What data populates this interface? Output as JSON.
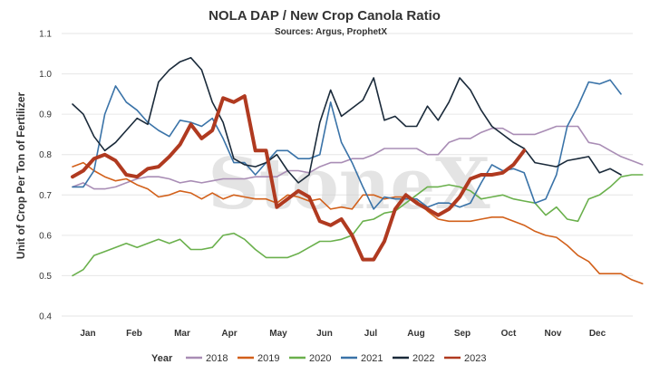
{
  "chart_data": {
    "type": "line",
    "title": "NOLA DAP / New Crop Canola Ratio",
    "subtitle": "Sources: Argus, ProphetX",
    "ylabel": "Unit of Crop Per Ton of Fertilizer",
    "xlabel": "",
    "ylim": [
      0.4,
      1.1
    ],
    "yticks": [
      0.4,
      0.5,
      0.6,
      0.7,
      0.8,
      0.9,
      1.0,
      1.1
    ],
    "ytick_labels": [
      "0.4",
      "0.5",
      "0.6",
      "0.7",
      "0.8",
      "0.9",
      "1.0",
      "1.1"
    ],
    "months": [
      "Jan",
      "Feb",
      "Mar",
      "Apr",
      "May",
      "Jun",
      "Jul",
      "Aug",
      "Sep",
      "Oct",
      "Nov",
      "Dec"
    ],
    "xlim_weeks": [
      0,
      51
    ],
    "grid": "horizontal",
    "legend": {
      "title": "Year",
      "placement": "bottom"
    },
    "watermark": "StoneX",
    "series": [
      {
        "name": "2018",
        "color": "#a98db5",
        "width": 1.6,
        "values": [
          0.72,
          0.73,
          0.715,
          0.715,
          0.72,
          0.73,
          0.74,
          0.745,
          0.745,
          0.74,
          0.73,
          0.735,
          0.73,
          0.735,
          0.74,
          0.74,
          0.74,
          0.745,
          0.745,
          0.745,
          0.76,
          0.76,
          0.755,
          0.77,
          0.78,
          0.78,
          0.79,
          0.79,
          0.8,
          0.815,
          0.815,
          0.815,
          0.815,
          0.8,
          0.8,
          0.83,
          0.84,
          0.84,
          0.855,
          0.865,
          0.865,
          0.85,
          0.85,
          0.85,
          0.86,
          0.87,
          0.87,
          0.87,
          0.83,
          0.825,
          0.81,
          0.795,
          0.785,
          0.775
        ]
      },
      {
        "name": "2019",
        "color": "#d2601a",
        "width": 1.6,
        "values": [
          0.77,
          0.78,
          0.76,
          0.745,
          0.735,
          0.74,
          0.725,
          0.715,
          0.695,
          0.7,
          0.71,
          0.705,
          0.69,
          0.705,
          0.69,
          0.7,
          0.695,
          0.69,
          0.69,
          0.68,
          0.7,
          0.695,
          0.685,
          0.69,
          0.665,
          0.67,
          0.665,
          0.7,
          0.7,
          0.69,
          0.695,
          0.695,
          0.685,
          0.66,
          0.64,
          0.635,
          0.635,
          0.635,
          0.64,
          0.645,
          0.645,
          0.635,
          0.625,
          0.61,
          0.6,
          0.595,
          0.575,
          0.55,
          0.535,
          0.505,
          0.505,
          0.505,
          0.49,
          0.48
        ]
      },
      {
        "name": "2020",
        "color": "#6ab04c",
        "width": 1.6,
        "values": [
          0.5,
          0.515,
          0.55,
          0.56,
          0.57,
          0.58,
          0.57,
          0.58,
          0.59,
          0.58,
          0.59,
          0.565,
          0.565,
          0.57,
          0.6,
          0.605,
          0.59,
          0.565,
          0.545,
          0.545,
          0.545,
          0.555,
          0.57,
          0.585,
          0.585,
          0.59,
          0.6,
          0.635,
          0.64,
          0.655,
          0.66,
          0.68,
          0.7,
          0.72,
          0.72,
          0.725,
          0.72,
          0.71,
          0.69,
          0.695,
          0.7,
          0.69,
          0.685,
          0.68,
          0.65,
          0.67,
          0.64,
          0.635,
          0.69,
          0.7,
          0.72,
          0.745,
          0.75,
          0.75
        ]
      },
      {
        "name": "2021",
        "color": "#3a73a8",
        "width": 1.6,
        "values": [
          0.72,
          0.72,
          0.76,
          0.9,
          0.97,
          0.93,
          0.91,
          0.88,
          0.86,
          0.845,
          0.885,
          0.88,
          0.87,
          0.89,
          0.84,
          0.78,
          0.78,
          0.75,
          0.78,
          0.81,
          0.81,
          0.79,
          0.79,
          0.8,
          0.93,
          0.83,
          0.78,
          0.72,
          0.665,
          0.695,
          0.69,
          0.69,
          0.69,
          0.67,
          0.68,
          0.68,
          0.67,
          0.68,
          0.73,
          0.775,
          0.76,
          0.765,
          0.755,
          0.68,
          0.69,
          0.75,
          0.87,
          0.92,
          0.98,
          0.975,
          0.985,
          0.95
        ]
      },
      {
        "name": "2022",
        "color": "#1a2a3a",
        "width": 1.6,
        "values": [
          0.925,
          0.9,
          0.845,
          0.81,
          0.83,
          0.86,
          0.89,
          0.875,
          0.98,
          1.01,
          1.03,
          1.04,
          1.01,
          0.93,
          0.88,
          0.79,
          0.775,
          0.77,
          0.78,
          0.8,
          0.76,
          0.73,
          0.75,
          0.88,
          0.96,
          0.895,
          0.915,
          0.935,
          0.99,
          0.885,
          0.895,
          0.87,
          0.87,
          0.92,
          0.885,
          0.93,
          0.99,
          0.96,
          0.91,
          0.87,
          0.85,
          0.83,
          0.815,
          0.78,
          0.775,
          0.77,
          0.785,
          0.79,
          0.795,
          0.755,
          0.765,
          0.75
        ]
      },
      {
        "name": "2023",
        "color": "#b03a20",
        "width": 4,
        "values": [
          0.745,
          0.76,
          0.79,
          0.8,
          0.785,
          0.75,
          0.745,
          0.765,
          0.77,
          0.795,
          0.825,
          0.875,
          0.84,
          0.86,
          0.94,
          0.93,
          0.945,
          0.81,
          0.81,
          0.67,
          0.69,
          0.71,
          0.695,
          0.635,
          0.625,
          0.64,
          0.6,
          0.54,
          0.54,
          0.585,
          0.665,
          0.7,
          0.68,
          0.665,
          0.65,
          0.665,
          0.695,
          0.74,
          0.75,
          0.75,
          0.755,
          0.775,
          0.81
        ]
      }
    ]
  }
}
